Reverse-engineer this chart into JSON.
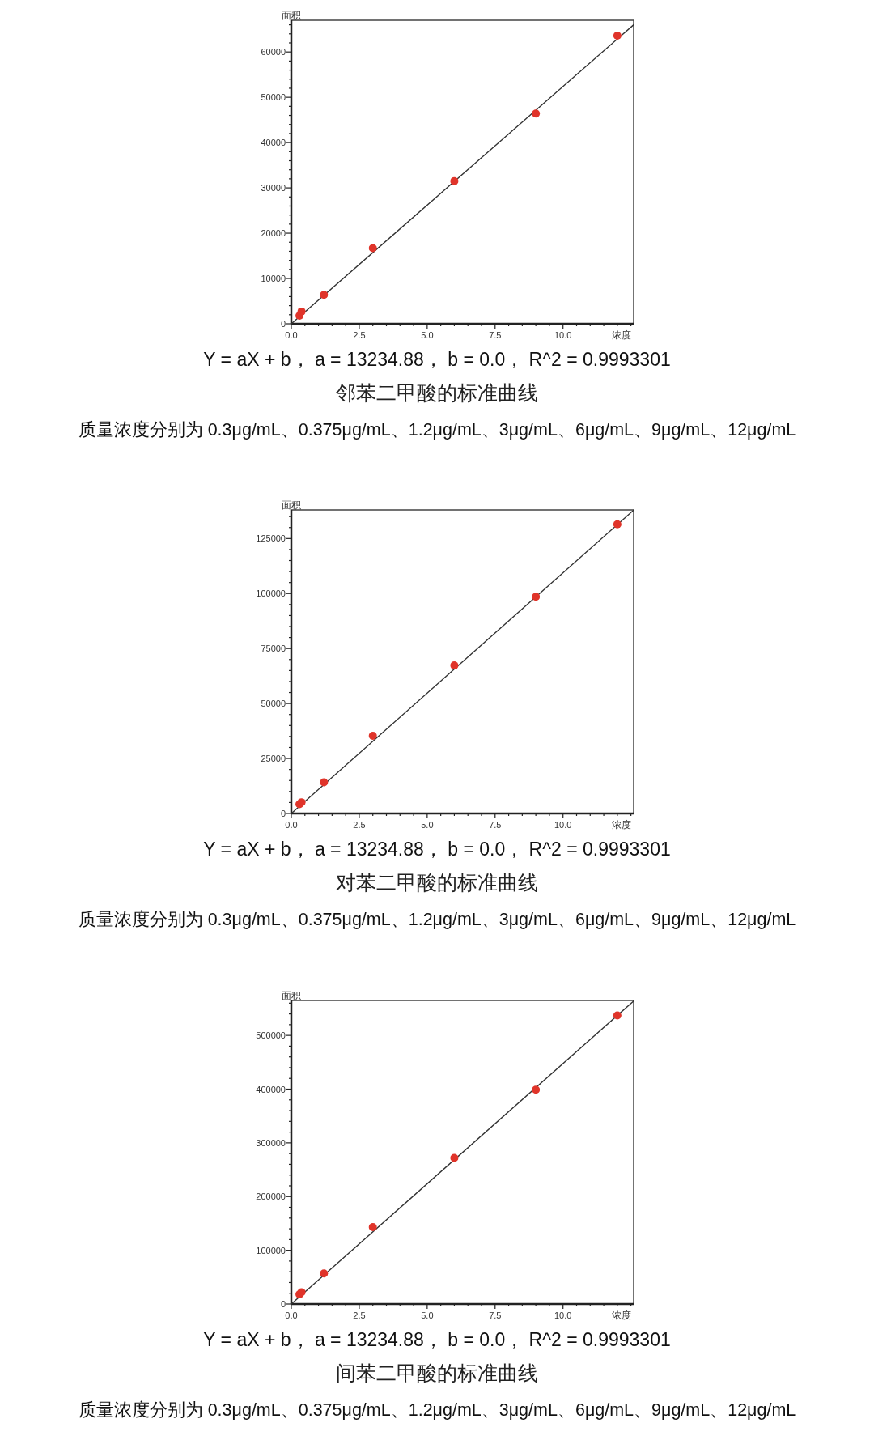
{
  "chart_data": [
    {
      "type": "scatter",
      "title": "邻苯二甲酸的标准曲线",
      "xlabel": "浓度",
      "ylabel": "面积",
      "xlim": [
        0,
        12.6
      ],
      "ylim": [
        0,
        67000
      ],
      "xticks": [
        {
          "value": 0,
          "label": "0.0"
        },
        {
          "value": 0.5,
          "label": null
        },
        {
          "value": 1,
          "label": null
        },
        {
          "value": 1.5,
          "label": null
        },
        {
          "value": 2,
          "label": null
        },
        {
          "value": 2.5,
          "label": "2.5"
        },
        {
          "value": 3,
          "label": null
        },
        {
          "value": 3.5,
          "label": null
        },
        {
          "value": 4,
          "label": null
        },
        {
          "value": 4.5,
          "label": null
        },
        {
          "value": 5,
          "label": "5.0"
        },
        {
          "value": 5.5,
          "label": null
        },
        {
          "value": 6,
          "label": null
        },
        {
          "value": 6.5,
          "label": null
        },
        {
          "value": 7,
          "label": null
        },
        {
          "value": 7.5,
          "label": "7.5"
        },
        {
          "value": 8,
          "label": null
        },
        {
          "value": 8.5,
          "label": null
        },
        {
          "value": 9,
          "label": null
        },
        {
          "value": 9.5,
          "label": null
        },
        {
          "value": 10,
          "label": "10.0"
        },
        {
          "value": 10.5,
          "label": null
        },
        {
          "value": 11,
          "label": null
        },
        {
          "value": 11.5,
          "label": null
        },
        {
          "value": 12,
          "label": null
        },
        {
          "value": 12.5,
          "label": null
        }
      ],
      "yticks": [
        0,
        {
          "value": 2000,
          "label": null
        },
        {
          "value": 4000,
          "label": null
        },
        {
          "value": 6000,
          "label": null
        },
        {
          "value": 8000,
          "label": null
        },
        10000,
        {
          "value": 12000,
          "label": null
        },
        {
          "value": 14000,
          "label": null
        },
        {
          "value": 16000,
          "label": null
        },
        {
          "value": 18000,
          "label": null
        },
        20000,
        {
          "value": 22000,
          "label": null
        },
        {
          "value": 24000,
          "label": null
        },
        {
          "value": 26000,
          "label": null
        },
        {
          "value": 28000,
          "label": null
        },
        30000,
        {
          "value": 32000,
          "label": null
        },
        {
          "value": 34000,
          "label": null
        },
        {
          "value": 36000,
          "label": null
        },
        {
          "value": 38000,
          "label": null
        },
        40000,
        {
          "value": 42000,
          "label": null
        },
        {
          "value": 44000,
          "label": null
        },
        {
          "value": 46000,
          "label": null
        },
        {
          "value": 48000,
          "label": null
        },
        50000,
        {
          "value": 52000,
          "label": null
        },
        {
          "value": 54000,
          "label": null
        },
        {
          "value": 56000,
          "label": null
        },
        {
          "value": 58000,
          "label": null
        },
        60000,
        {
          "value": 62000,
          "label": null
        },
        {
          "value": 64000,
          "label": null
        },
        {
          "value": 66000,
          "label": null
        }
      ],
      "series": [
        {
          "type": "line",
          "color": "#333333",
          "line_style": "solid",
          "x": [
            0,
            12.6
          ],
          "values": [
            0,
            66000
          ]
        },
        {
          "type": "scatter",
          "color": "#e0342a",
          "marker": "circle",
          "x": [
            0.3,
            0.375,
            1.2,
            3,
            6,
            9,
            12
          ],
          "values": [
            1800,
            2700,
            6400,
            16700,
            31500,
            46400,
            63600
          ]
        }
      ],
      "annotations": [
        "Y = aX + b， a = 13234.88， b = 0.0， R^2 = 0.9993301",
        "质量浓度分别为 0.3μg/mL、0.375μg/mL、1.2μg/mL、3μg/mL、6μg/mL、9μg/mL、12μg/mL"
      ]
    },
    {
      "type": "scatter",
      "title": "对苯二甲酸的标准曲线",
      "xlabel": "浓度",
      "ylabel": "面积",
      "xlim": [
        0,
        12.6
      ],
      "ylim": [
        0,
        138000
      ],
      "xticks": [
        {
          "value": 0,
          "label": "0.0"
        },
        {
          "value": 0.5,
          "label": null
        },
        {
          "value": 1,
          "label": null
        },
        {
          "value": 1.5,
          "label": null
        },
        {
          "value": 2,
          "label": null
        },
        {
          "value": 2.5,
          "label": "2.5"
        },
        {
          "value": 3,
          "label": null
        },
        {
          "value": 3.5,
          "label": null
        },
        {
          "value": 4,
          "label": null
        },
        {
          "value": 4.5,
          "label": null
        },
        {
          "value": 5,
          "label": "5.0"
        },
        {
          "value": 5.5,
          "label": null
        },
        {
          "value": 6,
          "label": null
        },
        {
          "value": 6.5,
          "label": null
        },
        {
          "value": 7,
          "label": null
        },
        {
          "value": 7.5,
          "label": "7.5"
        },
        {
          "value": 8,
          "label": null
        },
        {
          "value": 8.5,
          "label": null
        },
        {
          "value": 9,
          "label": null
        },
        {
          "value": 9.5,
          "label": null
        },
        {
          "value": 10,
          "label": "10.0"
        },
        {
          "value": 10.5,
          "label": null
        },
        {
          "value": 11,
          "label": null
        },
        {
          "value": 11.5,
          "label": null
        },
        {
          "value": 12,
          "label": null
        },
        {
          "value": 12.5,
          "label": null
        }
      ],
      "yticks": [
        0,
        {
          "value": 5000,
          "label": null
        },
        {
          "value": 10000,
          "label": null
        },
        {
          "value": 15000,
          "label": null
        },
        {
          "value": 20000,
          "label": null
        },
        25000,
        {
          "value": 30000,
          "label": null
        },
        {
          "value": 35000,
          "label": null
        },
        {
          "value": 40000,
          "label": null
        },
        {
          "value": 45000,
          "label": null
        },
        50000,
        {
          "value": 55000,
          "label": null
        },
        {
          "value": 60000,
          "label": null
        },
        {
          "value": 65000,
          "label": null
        },
        {
          "value": 70000,
          "label": null
        },
        75000,
        {
          "value": 80000,
          "label": null
        },
        {
          "value": 85000,
          "label": null
        },
        {
          "value": 90000,
          "label": null
        },
        {
          "value": 95000,
          "label": null
        },
        100000,
        {
          "value": 105000,
          "label": null
        },
        {
          "value": 110000,
          "label": null
        },
        {
          "value": 115000,
          "label": null
        },
        {
          "value": 120000,
          "label": null
        },
        125000,
        {
          "value": 130000,
          "label": null
        },
        {
          "value": 135000,
          "label": null
        }
      ],
      "series": [
        {
          "type": "line",
          "color": "#333333",
          "line_style": "solid",
          "x": [
            0,
            12.6
          ],
          "values": [
            0,
            137900
          ]
        },
        {
          "type": "scatter",
          "color": "#e0342a",
          "marker": "circle",
          "x": [
            0.3,
            0.375,
            1.2,
            3,
            6,
            9,
            12
          ],
          "values": [
            4200,
            5100,
            14200,
            35300,
            67300,
            98500,
            131500
          ]
        }
      ],
      "annotations": [
        "Y = aX + b， a = 13234.88， b = 0.0， R^2 = 0.9993301",
        "质量浓度分别为 0.3μg/mL、0.375μg/mL、1.2μg/mL、3μg/mL、6μg/mL、9μg/mL、12μg/mL"
      ]
    },
    {
      "type": "scatter",
      "title": "间苯二甲酸的标准曲线",
      "xlabel": "浓度",
      "ylabel": "面积",
      "xlim": [
        0,
        12.6
      ],
      "ylim": [
        0,
        565000
      ],
      "xticks": [
        {
          "value": 0,
          "label": "0.0"
        },
        {
          "value": 0.5,
          "label": null
        },
        {
          "value": 1,
          "label": null
        },
        {
          "value": 1.5,
          "label": null
        },
        {
          "value": 2,
          "label": null
        },
        {
          "value": 2.5,
          "label": "2.5"
        },
        {
          "value": 3,
          "label": null
        },
        {
          "value": 3.5,
          "label": null
        },
        {
          "value": 4,
          "label": null
        },
        {
          "value": 4.5,
          "label": null
        },
        {
          "value": 5,
          "label": "5.0"
        },
        {
          "value": 5.5,
          "label": null
        },
        {
          "value": 6,
          "label": null
        },
        {
          "value": 6.5,
          "label": null
        },
        {
          "value": 7,
          "label": null
        },
        {
          "value": 7.5,
          "label": "7.5"
        },
        {
          "value": 8,
          "label": null
        },
        {
          "value": 8.5,
          "label": null
        },
        {
          "value": 9,
          "label": null
        },
        {
          "value": 9.5,
          "label": null
        },
        {
          "value": 10,
          "label": "10.0"
        },
        {
          "value": 10.5,
          "label": null
        },
        {
          "value": 11,
          "label": null
        },
        {
          "value": 11.5,
          "label": null
        },
        {
          "value": 12,
          "label": null
        },
        {
          "value": 12.5,
          "label": null
        }
      ],
      "yticks": [
        0,
        {
          "value": 20000,
          "label": null
        },
        {
          "value": 40000,
          "label": null
        },
        {
          "value": 60000,
          "label": null
        },
        {
          "value": 80000,
          "label": null
        },
        100000,
        {
          "value": 120000,
          "label": null
        },
        {
          "value": 140000,
          "label": null
        },
        {
          "value": 160000,
          "label": null
        },
        {
          "value": 180000,
          "label": null
        },
        200000,
        {
          "value": 220000,
          "label": null
        },
        {
          "value": 240000,
          "label": null
        },
        {
          "value": 260000,
          "label": null
        },
        {
          "value": 280000,
          "label": null
        },
        300000,
        {
          "value": 320000,
          "label": null
        },
        {
          "value": 340000,
          "label": null
        },
        {
          "value": 360000,
          "label": null
        },
        {
          "value": 380000,
          "label": null
        },
        400000,
        {
          "value": 420000,
          "label": null
        },
        {
          "value": 440000,
          "label": null
        },
        {
          "value": 460000,
          "label": null
        },
        {
          "value": 480000,
          "label": null
        },
        500000,
        {
          "value": 520000,
          "label": null
        },
        {
          "value": 540000,
          "label": null
        },
        {
          "value": 560000,
          "label": null
        }
      ],
      "series": [
        {
          "type": "line",
          "color": "#333333",
          "line_style": "solid",
          "x": [
            0,
            12.6
          ],
          "values": [
            0,
            564000
          ]
        },
        {
          "type": "scatter",
          "color": "#e0342a",
          "marker": "circle",
          "x": [
            0.3,
            0.375,
            1.2,
            3,
            6,
            9,
            12
          ],
          "values": [
            18000,
            22000,
            57000,
            143000,
            272000,
            399000,
            537000
          ]
        }
      ],
      "annotations": [
        "Y = aX + b， a = 13234.88， b = 0.0， R^2 = 0.9993301",
        "质量浓度分别为 0.3μg/mL、0.375μg/mL、1.2μg/mL、3μg/mL、6μg/mL、9μg/mL、12μg/mL"
      ]
    }
  ]
}
